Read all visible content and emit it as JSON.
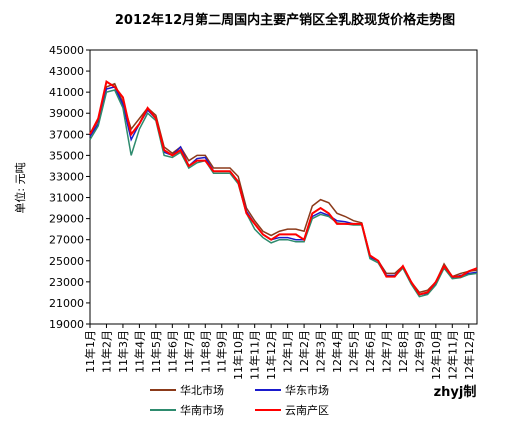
{
  "chart_data": {
    "type": "line",
    "title": "2012年12月第二周国内主要产销区全乳胶现货价格走势图",
    "y_label": "单位: 元吨",
    "annotation": "zhyj制",
    "categories": [
      "11年1月",
      null,
      "11年2月",
      null,
      "11年3月",
      null,
      "11年4月",
      null,
      "11年5月",
      null,
      "11年6月",
      null,
      "11年7月",
      null,
      "11年8月",
      null,
      "11年9月",
      null,
      "11年10月",
      null,
      "11年11月",
      null,
      "11年12月",
      null,
      "12年1月",
      null,
      "12年2月",
      null,
      "12年3月",
      null,
      "12年4月",
      null,
      "12年5月",
      null,
      "12年6月",
      null,
      "12年7月",
      null,
      "12年8月",
      null,
      "12年9月",
      null,
      "12年10月",
      null,
      "12年11月",
      null,
      "12年12月",
      null
    ],
    "ylim": [
      19000,
      45000
    ],
    "yticks": [
      19000,
      21000,
      23000,
      25000,
      27000,
      29000,
      31000,
      33000,
      35000,
      37000,
      39000,
      41000,
      43000,
      45000
    ],
    "grid": false,
    "series": [
      {
        "name": "华北市场",
        "color": "#8b3a1a",
        "values": [
          37000,
          38300,
          41500,
          41800,
          40000,
          37500,
          38500,
          39500,
          38800,
          35800,
          35200,
          35800,
          34500,
          35000,
          35000,
          33800,
          33800,
          33800,
          33000,
          30000,
          28800,
          27800,
          27400,
          27800,
          28000,
          28000,
          27800,
          30200,
          30800,
          30500,
          29500,
          29200,
          28800,
          28600,
          25500,
          25000,
          23800,
          23800,
          24500,
          23000,
          22000,
          22200,
          23000,
          24700,
          23500,
          23800,
          24000,
          24100
        ]
      },
      {
        "name": "华东市场",
        "color": "#1a1acc",
        "values": [
          36800,
          38000,
          41300,
          41500,
          39800,
          36500,
          38000,
          39300,
          38500,
          35300,
          35000,
          35800,
          34000,
          34700,
          34800,
          33500,
          33500,
          33500,
          32500,
          29700,
          28500,
          27500,
          27000,
          27200,
          27200,
          27000,
          27000,
          29200,
          29600,
          29300,
          28800,
          28700,
          28500,
          28500,
          25300,
          25000,
          23600,
          23600,
          24400,
          23000,
          21800,
          21900,
          22800,
          24500,
          23400,
          23600,
          23800,
          23900
        ]
      },
      {
        "name": "华南市场",
        "color": "#2e8b6e",
        "values": [
          36500,
          37800,
          41000,
          41200,
          39500,
          35000,
          37500,
          39000,
          38300,
          35000,
          34800,
          35300,
          33800,
          34300,
          34500,
          33300,
          33300,
          33300,
          32300,
          29500,
          28000,
          27200,
          26700,
          27000,
          27000,
          26800,
          26800,
          29000,
          29400,
          29200,
          28600,
          28500,
          28400,
          28400,
          25200,
          24800,
          23500,
          23500,
          24300,
          22800,
          21600,
          21800,
          22700,
          24300,
          23300,
          23400,
          23700,
          23800
        ]
      },
      {
        "name": "云南产区",
        "color": "#ff0000",
        "values": [
          37000,
          38500,
          42000,
          41500,
          40500,
          37000,
          38000,
          39500,
          38500,
          35500,
          35000,
          35500,
          34000,
          34500,
          34500,
          33500,
          33500,
          33500,
          32500,
          29500,
          28500,
          27500,
          27000,
          27500,
          27500,
          27500,
          27000,
          29500,
          30000,
          29500,
          28500,
          28500,
          28500,
          28500,
          25500,
          25000,
          23500,
          23500,
          24500,
          23000,
          21800,
          22000,
          23000,
          24500,
          23500,
          23500,
          24000,
          24300
        ]
      }
    ]
  }
}
